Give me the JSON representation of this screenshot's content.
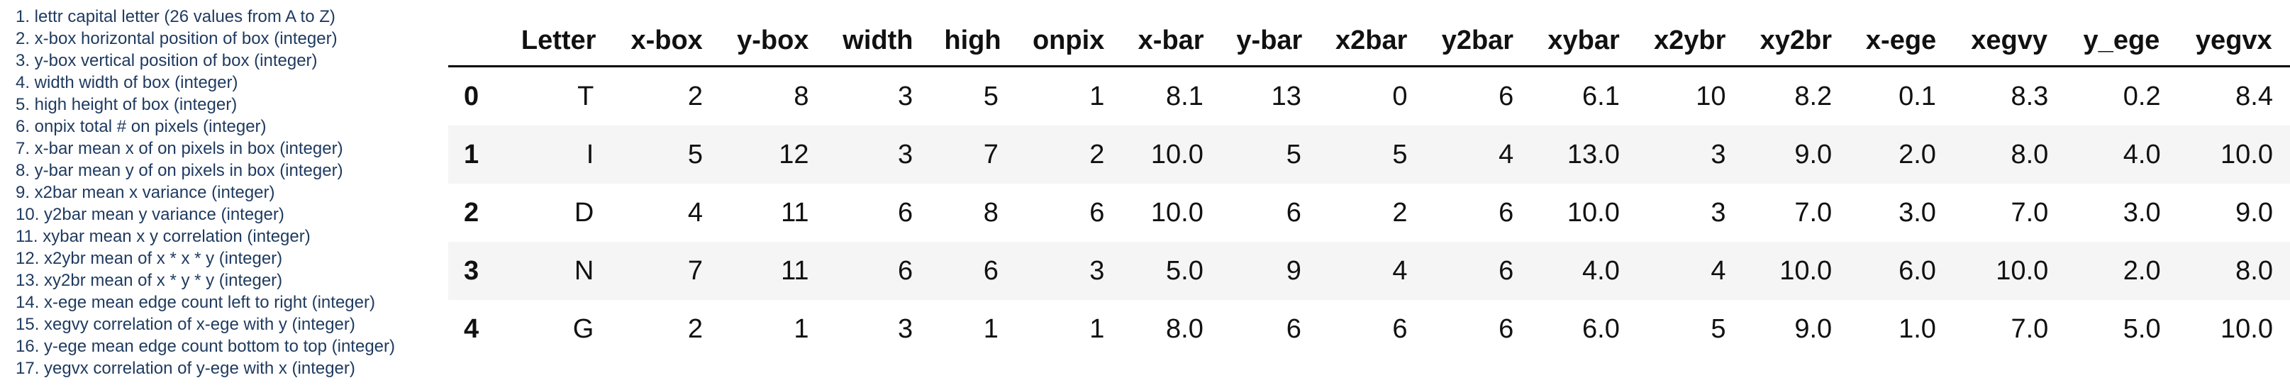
{
  "legend": [
    "1. lettr capital letter (26 values from A to Z)",
    "2. x-box horizontal position of box (integer)",
    "3. y-box vertical position of box (integer)",
    "4. width width of box (integer)",
    "5. high height of box (integer)",
    "6. onpix total # on pixels (integer)",
    "7. x-bar mean x of on pixels in box (integer)",
    "8. y-bar mean y of on pixels in box (integer)",
    "9. x2bar mean x variance (integer)",
    "10. y2bar mean y variance (integer)",
    "11. xybar mean x y correlation (integer)",
    "12. x2ybr mean of x * x * y (integer)",
    "13. xy2br mean of x * y * y (integer)",
    "14. x-ege mean edge count left to right (integer)",
    "15. xegvy correlation of x-ege with y (integer)",
    "16. y-ege mean edge count bottom to top (integer)",
    "17. yegvx correlation of y-ege with x (integer)"
  ],
  "table": {
    "columns": [
      "",
      "Letter",
      "x-box",
      "y-box",
      "width",
      "high",
      "onpix",
      "x-bar",
      "y-bar",
      "x2bar",
      "y2bar",
      "xybar",
      "x2ybr",
      "xy2br",
      "x-ege",
      "xegvy",
      "y_ege",
      "yegvx"
    ],
    "rows": [
      [
        "0",
        "T",
        "2",
        "8",
        "3",
        "5",
        "1",
        "8.1",
        "13",
        "0",
        "6",
        "6.1",
        "10",
        "8.2",
        "0.1",
        "8.3",
        "0.2",
        "8.4"
      ],
      [
        "1",
        "I",
        "5",
        "12",
        "3",
        "7",
        "2",
        "10.0",
        "5",
        "5",
        "4",
        "13.0",
        "3",
        "9.0",
        "2.0",
        "8.0",
        "4.0",
        "10.0"
      ],
      [
        "2",
        "D",
        "4",
        "11",
        "6",
        "8",
        "6",
        "10.0",
        "6",
        "2",
        "6",
        "10.0",
        "3",
        "7.0",
        "3.0",
        "7.0",
        "3.0",
        "9.0"
      ],
      [
        "3",
        "N",
        "7",
        "11",
        "6",
        "6",
        "3",
        "5.0",
        "9",
        "4",
        "6",
        "4.0",
        "4",
        "10.0",
        "6.0",
        "10.0",
        "2.0",
        "8.0"
      ],
      [
        "4",
        "G",
        "2",
        "1",
        "3",
        "1",
        "1",
        "8.0",
        "6",
        "6",
        "6",
        "6.0",
        "5",
        "9.0",
        "1.0",
        "7.0",
        "5.0",
        "10.0"
      ]
    ]
  }
}
